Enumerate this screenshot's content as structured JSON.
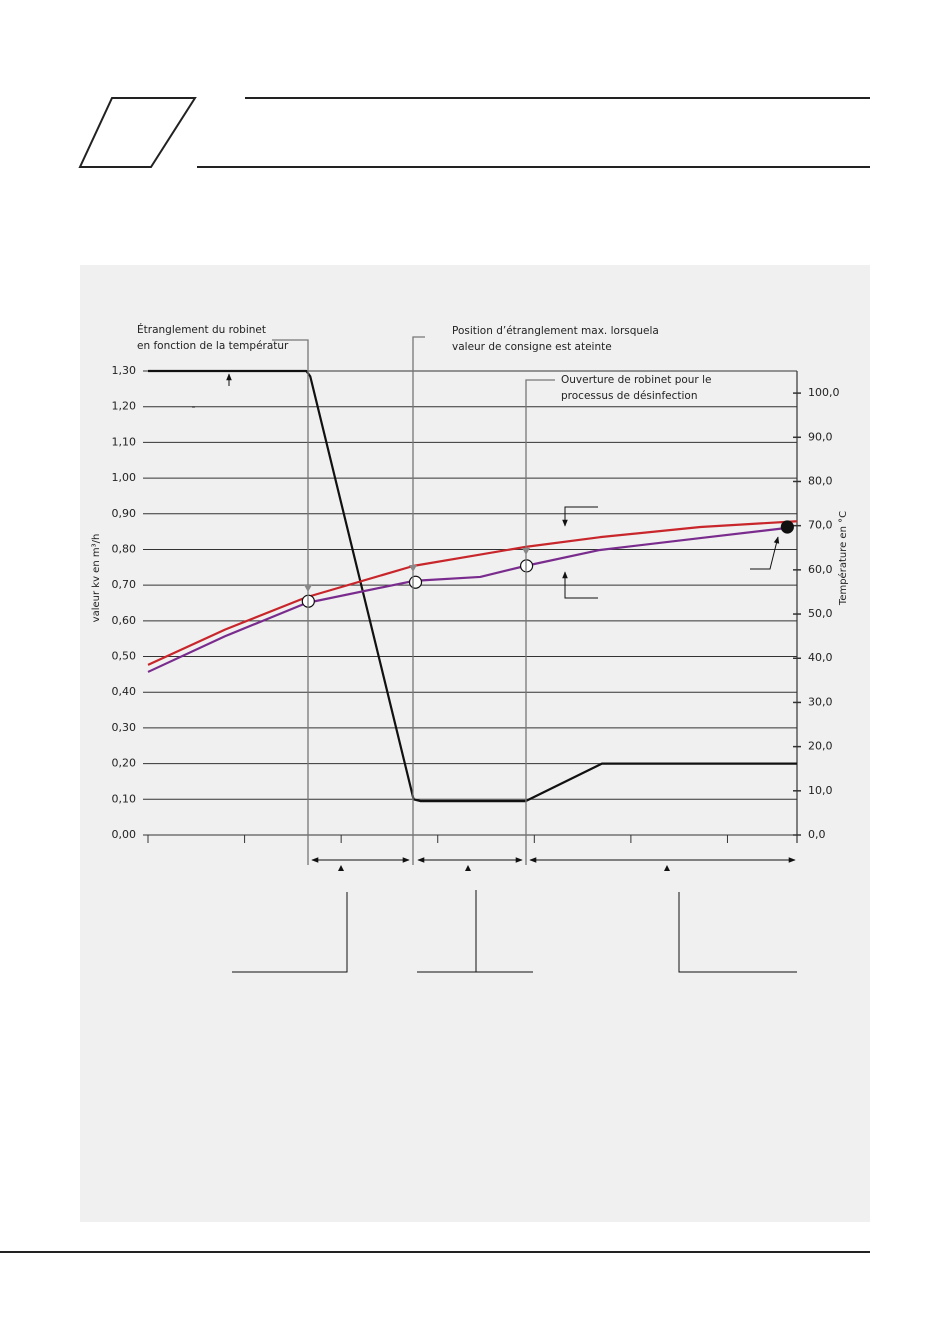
{
  "chart_data": {
    "type": "line",
    "annotations": [
      {
        "lines": [
          "Étranglement du robinet",
          "en fonction de la températur"
        ]
      },
      {
        "lines": [
          "Position d’étranglement max. lorsquela",
          "valeur de consigne est ateinte"
        ]
      },
      {
        "lines": [
          "Ouverture de robinet pour le",
          "processus de désinfection"
        ]
      }
    ],
    "y_label": "valeur kv en m³/h",
    "y2_label": "Température en °C",
    "xlim": [
      0,
      6.72
    ],
    "xticks": [
      0,
      1,
      2,
      3,
      4,
      5,
      6
    ],
    "ylim": [
      0,
      1.3
    ],
    "yticks": [
      {
        "value": 0,
        "label": "0,00"
      },
      {
        "value": 0.1,
        "label": "0,10"
      },
      {
        "value": 0.2,
        "label": "0,20"
      },
      {
        "value": 0.3,
        "label": "0,30"
      },
      {
        "value": 0.4,
        "label": "0,40"
      },
      {
        "value": 0.5,
        "label": "0,50"
      },
      {
        "value": 0.6,
        "label": "0,60"
      },
      {
        "value": 0.7,
        "label": "0,70"
      },
      {
        "value": 0.8,
        "label": "0,80"
      },
      {
        "value": 0.9,
        "label": "0,90"
      },
      {
        "value": 1.0,
        "label": "1,00"
      },
      {
        "value": 1.1,
        "label": "1,10"
      },
      {
        "value": 1.2,
        "label": "1,20"
      },
      {
        "value": 1.3,
        "label": "1,30"
      }
    ],
    "y2lim": [
      0,
      105
    ],
    "y2ticks": [
      {
        "value": 0,
        "label": "0,0"
      },
      {
        "value": 10,
        "label": "10,0"
      },
      {
        "value": 20,
        "label": "20,0"
      },
      {
        "value": 30,
        "label": "30,0"
      },
      {
        "value": 40,
        "label": "40,0"
      },
      {
        "value": 50,
        "label": "50,0"
      },
      {
        "value": 60,
        "label": "60,0"
      },
      {
        "value": 70,
        "label": "70,0"
      },
      {
        "value": 80,
        "label": "80,0"
      },
      {
        "value": 90,
        "label": "90,0"
      },
      {
        "value": 100,
        "label": "100,0"
      }
    ],
    "grid": true,
    "series": [
      {
        "color": "#111111",
        "x": [
          0,
          1.64,
          1.68,
          2.75,
          2.82,
          3.91,
          4.7,
          6.72
        ],
        "values": [
          1.3,
          1.3,
          1.285,
          0.1,
          0.095,
          0.095,
          0.2,
          0.2
        ]
      },
      {
        "color": "#c8262b",
        "axis": "y2",
        "x": [
          0,
          0.8,
          1.64,
          2.75,
          3.91,
          4.68,
          5.72,
          6.72
        ],
        "values": [
          38.5,
          46.5,
          53.8,
          60.9,
          65.2,
          67.4,
          69.7,
          71.0
        ]
      },
      {
        "color": "#7a2c8e",
        "axis": "y2",
        "x": [
          0,
          0.8,
          1.64,
          2.75,
          3.44,
          3.91,
          4.68,
          5.72,
          6.62
        ],
        "values": [
          36.9,
          45,
          52.5,
          57.5,
          58.4,
          60.9,
          64.5,
          67.2,
          69.5
        ]
      }
    ],
    "markers": {
      "axis": "y2",
      "x": [
        1.66,
        2.77,
        3.92,
        6.62
      ],
      "values": [
        52.9,
        57.2,
        60.9,
        69.7
      ],
      "filled": [
        false,
        false,
        false,
        true
      ]
    }
  }
}
